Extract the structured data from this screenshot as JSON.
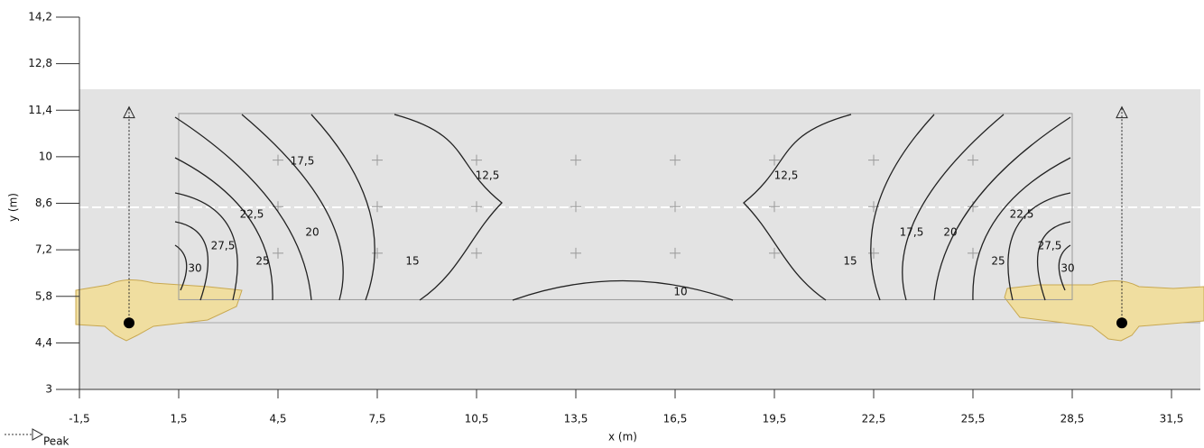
{
  "chart_data": {
    "type": "contour",
    "xlabel": "x (m)",
    "ylabel": "y (m)",
    "xlim": [
      -1.5,
      32.4
    ],
    "ylim": [
      3,
      14.2
    ],
    "xticks": [
      {
        "value": -1.5,
        "label": "-1,5"
      },
      {
        "value": 1.5,
        "label": "1,5"
      },
      {
        "value": 4.5,
        "label": "4,5"
      },
      {
        "value": 7.5,
        "label": "7,5"
      },
      {
        "value": 10.5,
        "label": "10,5"
      },
      {
        "value": 13.5,
        "label": "13,5"
      },
      {
        "value": 16.5,
        "label": "16,5"
      },
      {
        "value": 19.5,
        "label": "19,5"
      },
      {
        "value": 22.5,
        "label": "22,5"
      },
      {
        "value": 25.5,
        "label": "25,5"
      },
      {
        "value": 28.5,
        "label": "28,5"
      },
      {
        "value": 31.5,
        "label": "31,5"
      }
    ],
    "yticks": [
      3,
      {
        "value": 4.4,
        "label": "4,4"
      },
      {
        "value": 5.8,
        "label": "5,8"
      },
      {
        "value": 7.2,
        "label": "7,2"
      },
      {
        "value": 8.6,
        "label": "8,6"
      },
      10,
      {
        "value": 11.4,
        "label": "11,4"
      },
      {
        "value": 12.8,
        "label": "12,8"
      },
      {
        "value": 14.2,
        "label": "14,2"
      }
    ],
    "grid_area": {
      "xlim": [
        1.5,
        28.5
      ],
      "ylim": [
        5.7,
        11.3
      ]
    },
    "grid_points_x": [
      4.5,
      7.5,
      10.5,
      13.5,
      16.5,
      19.5,
      22.5,
      25.5
    ],
    "grid_points_y": [
      7.1,
      8.5,
      9.9
    ],
    "contour_levels": [
      30,
      {
        "value": 27.5,
        "label": "27,5"
      },
      25,
      {
        "value": 22.5,
        "label": "22,5"
      },
      20,
      {
        "value": 17.5,
        "label": "17,5"
      },
      15,
      {
        "value": 12.5,
        "label": "12,5"
      },
      10
    ],
    "luminaires": {
      "name": "Peak",
      "x": [
        0,
        30
      ],
      "y": [
        5,
        5
      ],
      "peak_y": [
        11.5,
        11.5
      ]
    }
  }
}
